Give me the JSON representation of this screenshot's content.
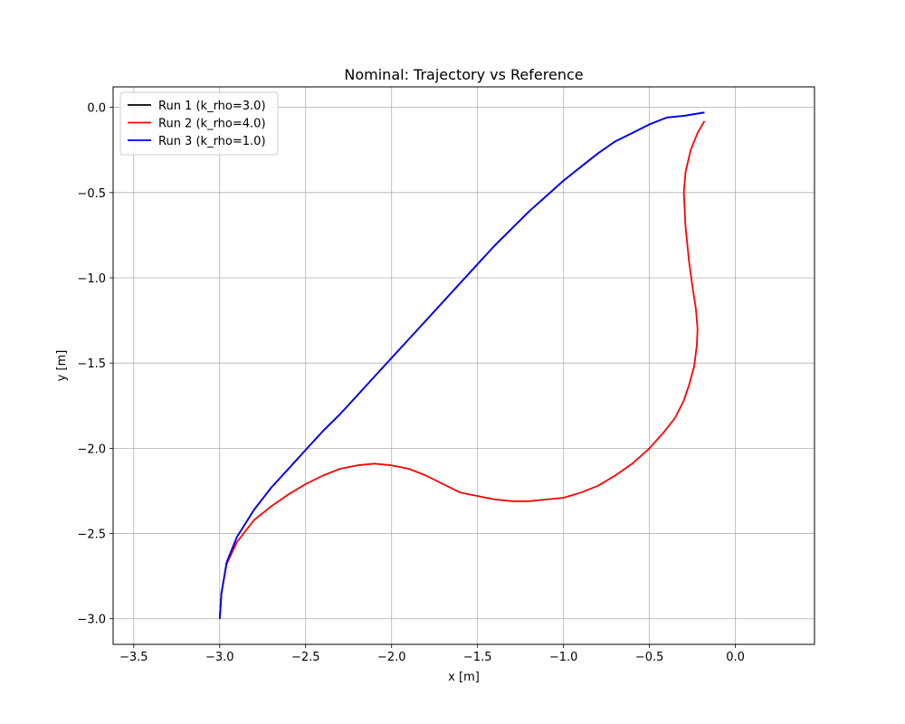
{
  "chart_data": {
    "type": "line",
    "title": "Nominal: Trajectory vs Reference",
    "xlabel": "x [m]",
    "ylabel": "y [m]",
    "xlim": [
      -3.62,
      0.46
    ],
    "ylim": [
      -3.15,
      0.12
    ],
    "xticks": [
      -3.5,
      -3.0,
      -2.5,
      -2.0,
      -1.5,
      -1.0,
      -0.5,
      0.0
    ],
    "xtick_labels": [
      "−3.5",
      "−3.0",
      "−2.5",
      "−2.0",
      "−1.5",
      "−1.0",
      "−0.5",
      "0.0"
    ],
    "yticks": [
      0.0,
      -0.5,
      -1.0,
      -1.5,
      -2.0,
      -2.5,
      -3.0
    ],
    "ytick_labels": [
      "0.0",
      "−0.5",
      "−1.0",
      "−1.5",
      "−2.0",
      "−2.5",
      "−3.0"
    ],
    "grid": true,
    "legend_position": "upper-left",
    "series": [
      {
        "name": "Run 1 (k_rho=3.0)",
        "color": "#000000",
        "x": [
          -3.0,
          -2.99,
          -2.96,
          -2.9,
          -2.8,
          -2.7,
          -2.6,
          -2.5,
          -2.4,
          -2.3,
          -2.2,
          -2.1,
          -2.0,
          -1.9,
          -1.8,
          -1.7,
          -1.6,
          -1.5,
          -1.4,
          -1.3,
          -1.2,
          -1.1,
          -1.0,
          -0.9,
          -0.8,
          -0.7,
          -0.6,
          -0.5,
          -0.4,
          -0.3,
          -0.18
        ],
        "y": [
          -3.0,
          -2.85,
          -2.67,
          -2.52,
          -2.36,
          -2.23,
          -2.12,
          -2.01,
          -1.9,
          -1.8,
          -1.69,
          -1.58,
          -1.47,
          -1.36,
          -1.25,
          -1.14,
          -1.03,
          -0.92,
          -0.81,
          -0.71,
          -0.61,
          -0.52,
          -0.43,
          -0.35,
          -0.27,
          -0.2,
          -0.15,
          -0.1,
          -0.06,
          -0.05,
          -0.03
        ]
      },
      {
        "name": "Run 2 (k_rho=4.0)",
        "color": "#ff0000",
        "x": [
          -3.0,
          -2.99,
          -2.96,
          -2.9,
          -2.8,
          -2.7,
          -2.6,
          -2.5,
          -2.4,
          -2.3,
          -2.2,
          -2.1,
          -2.0,
          -1.9,
          -1.8,
          -1.7,
          -1.6,
          -1.5,
          -1.4,
          -1.3,
          -1.2,
          -1.1,
          -1.0,
          -0.9,
          -0.8,
          -0.7,
          -0.6,
          -0.5,
          -0.42,
          -0.35,
          -0.3,
          -0.27,
          -0.24,
          -0.225,
          -0.22,
          -0.23,
          -0.25,
          -0.27,
          -0.29,
          -0.3,
          -0.29,
          -0.26,
          -0.22,
          -0.18
        ],
        "y": [
          -3.0,
          -2.85,
          -2.68,
          -2.55,
          -2.42,
          -2.34,
          -2.27,
          -2.21,
          -2.16,
          -2.12,
          -2.1,
          -2.09,
          -2.1,
          -2.12,
          -2.16,
          -2.21,
          -2.26,
          -2.28,
          -2.3,
          -2.31,
          -2.31,
          -2.3,
          -2.29,
          -2.26,
          -2.22,
          -2.16,
          -2.09,
          -2.0,
          -1.91,
          -1.82,
          -1.72,
          -1.63,
          -1.52,
          -1.4,
          -1.3,
          -1.18,
          -1.05,
          -0.9,
          -0.7,
          -0.5,
          -0.38,
          -0.25,
          -0.15,
          -0.08
        ]
      },
      {
        "name": "Run 3 (k_rho=1.0)",
        "color": "#0000ff",
        "x": [
          -3.0,
          -2.99,
          -2.96,
          -2.9,
          -2.8,
          -2.7,
          -2.6,
          -2.5,
          -2.4,
          -2.3,
          -2.2,
          -2.1,
          -2.0,
          -1.9,
          -1.8,
          -1.7,
          -1.6,
          -1.5,
          -1.4,
          -1.3,
          -1.2,
          -1.1,
          -1.0,
          -0.9,
          -0.8,
          -0.7,
          -0.6,
          -0.5,
          -0.4,
          -0.3,
          -0.18
        ],
        "y": [
          -3.0,
          -2.85,
          -2.67,
          -2.52,
          -2.36,
          -2.23,
          -2.12,
          -2.01,
          -1.9,
          -1.8,
          -1.69,
          -1.58,
          -1.47,
          -1.36,
          -1.25,
          -1.14,
          -1.03,
          -0.92,
          -0.81,
          -0.71,
          -0.61,
          -0.52,
          -0.43,
          -0.35,
          -0.27,
          -0.2,
          -0.15,
          -0.1,
          -0.06,
          -0.05,
          -0.03
        ]
      }
    ]
  }
}
